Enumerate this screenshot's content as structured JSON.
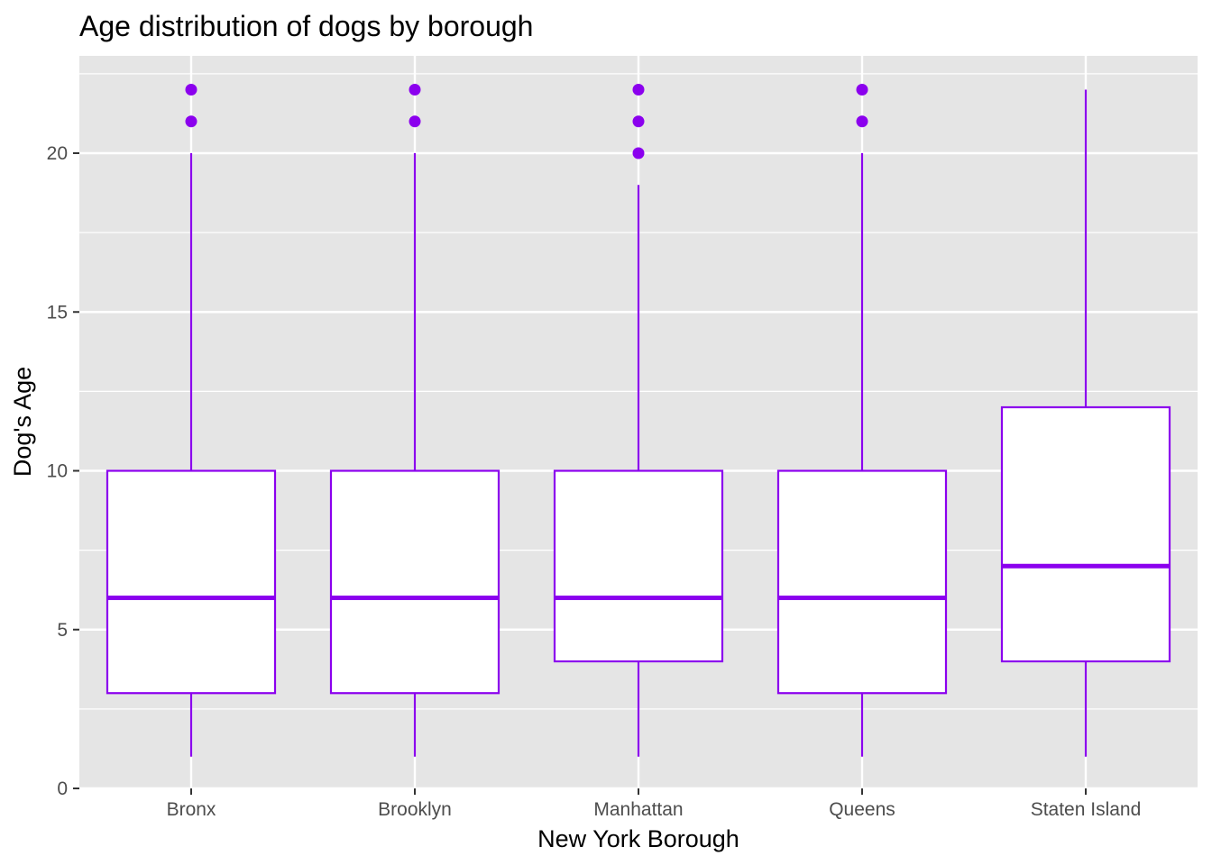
{
  "chart_data": {
    "type": "box",
    "title": "Age distribution of dogs by borough",
    "xlabel": "New York Borough",
    "ylabel": "Dog's Age",
    "ylim": [
      0,
      22.6
    ],
    "yticks": [
      0,
      5,
      10,
      15,
      20
    ],
    "grid": true,
    "legend": "none",
    "colors": {
      "box_stroke": "#8B00EE",
      "box_fill": "#ffffff",
      "panel_bg": "#E5E5E5",
      "grid": "#ffffff",
      "outlier": "#8B00EE"
    },
    "categories": [
      "Bronx",
      "Brooklyn",
      "Manhattan",
      "Queens",
      "Staten Island"
    ],
    "boxes": [
      {
        "category": "Bronx",
        "whisker_low": 1,
        "q1": 3,
        "median": 6,
        "q3": 10,
        "whisker_high": 20,
        "outliers": [
          21,
          22
        ]
      },
      {
        "category": "Brooklyn",
        "whisker_low": 1,
        "q1": 3,
        "median": 6,
        "q3": 10,
        "whisker_high": 20,
        "outliers": [
          21,
          22
        ]
      },
      {
        "category": "Manhattan",
        "whisker_low": 1,
        "q1": 4,
        "median": 6,
        "q3": 10,
        "whisker_high": 19,
        "outliers": [
          20,
          21,
          22
        ]
      },
      {
        "category": "Queens",
        "whisker_low": 1,
        "q1": 3,
        "median": 6,
        "q3": 10,
        "whisker_high": 20,
        "outliers": [
          21,
          22
        ]
      },
      {
        "category": "Staten Island",
        "whisker_low": 1,
        "q1": 4,
        "median": 7,
        "q3": 12,
        "whisker_high": 22,
        "outliers": []
      }
    ]
  }
}
